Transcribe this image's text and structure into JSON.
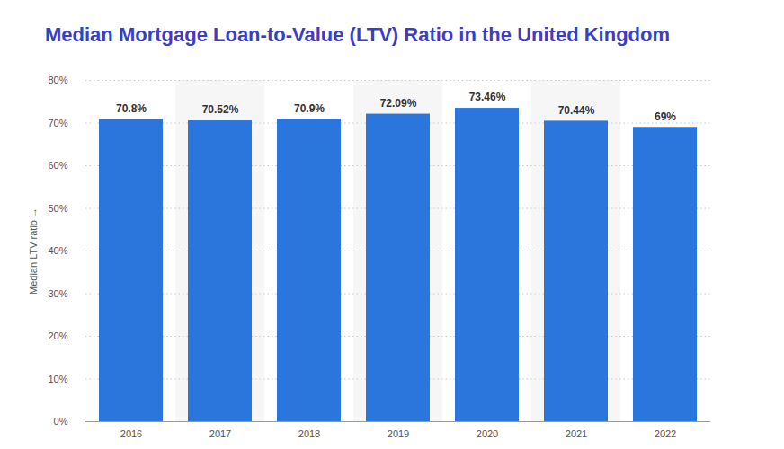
{
  "chart_data": {
    "type": "bar",
    "title": "Median Mortgage Loan-to-Value (LTV) Ratio in the United Kingdom",
    "y_label": "Median LTV ratio",
    "categories": [
      "2016",
      "2017",
      "2018",
      "2019",
      "2020",
      "2021",
      "2022"
    ],
    "values": [
      70.8,
      70.52,
      70.9,
      72.09,
      73.46,
      70.44,
      69
    ],
    "value_labels": [
      "70.8%",
      "70.52%",
      "70.9%",
      "72.09%",
      "73.46%",
      "70.44%",
      "69%"
    ],
    "color": "#2a76dd",
    "ylim": [
      0,
      80
    ],
    "yticks": [
      {
        "value": 0,
        "label": "0%"
      },
      {
        "value": 10,
        "label": "10%"
      },
      {
        "value": 20,
        "label": "20%"
      },
      {
        "value": 30,
        "label": "30%"
      },
      {
        "value": 40,
        "label": "40%"
      },
      {
        "value": 50,
        "label": "50%"
      },
      {
        "value": 60,
        "label": "60%"
      },
      {
        "value": 70,
        "label": "70%"
      },
      {
        "value": 80,
        "label": "80%"
      }
    ],
    "grid": true,
    "data_labels": true
  }
}
